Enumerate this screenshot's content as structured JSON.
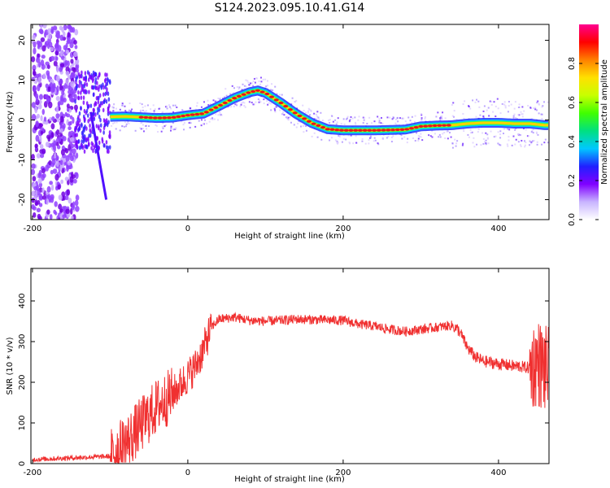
{
  "figure": {
    "title": "S124.2023.095.10.41.G14"
  },
  "colors": {
    "snr_line": "#f03030",
    "spectral_track": "#e8141e",
    "axis": "#000000",
    "colorbar_stops": [
      "#ffffff",
      "#c8b4ff",
      "#8000ff",
      "#2020ff",
      "#00c8ff",
      "#00e080",
      "#40ff00",
      "#c8ff00",
      "#ffe000",
      "#ff8000",
      "#ff0000",
      "#ff0090"
    ]
  },
  "chart_data": [
    {
      "type": "heatmap",
      "title": "S124.2023.095.10.41.G14",
      "xlabel": "Height of straight line (km)",
      "ylabel": "Frequency (Hz)",
      "xlim": [
        -202,
        465
      ],
      "ylim": [
        -25,
        24
      ],
      "x_ticks": [
        -200,
        0,
        200,
        400
      ],
      "y_ticks": [
        -20,
        -10,
        0,
        10,
        20
      ],
      "grid": false,
      "ridge": {
        "x": [
          -100,
          -80,
          -60,
          -40,
          -20,
          0,
          20,
          40,
          60,
          80,
          90,
          100,
          120,
          140,
          160,
          180,
          200,
          220,
          240,
          260,
          280,
          300,
          320,
          340,
          360,
          380,
          400,
          420,
          440,
          460
        ],
        "y": [
          0.8,
          0.9,
          0.7,
          0.5,
          0.6,
          1.2,
          1.6,
          3.5,
          5.5,
          7.0,
          7.4,
          6.8,
          4.3,
          1.5,
          -0.8,
          -2.3,
          -2.6,
          -2.6,
          -2.6,
          -2.5,
          -2.4,
          -1.6,
          -1.4,
          -1.3,
          -0.9,
          -0.7,
          -0.7,
          -0.9,
          -0.9,
          -1.3
        ]
      },
      "colorbar": {
        "label": "Normalized spectral amplitude",
        "range": [
          0,
          1
        ],
        "ticks": [
          "0.0",
          "0.2",
          "0.4",
          "0.6",
          "0.8"
        ],
        "tick_values": [
          0.0,
          0.2,
          0.4,
          0.6,
          0.8
        ]
      }
    },
    {
      "type": "line",
      "xlabel": "Height of straight line (km)",
      "ylabel": "SNR (10 * v/v)",
      "xlim": [
        -202,
        465
      ],
      "ylim": [
        0,
        480
      ],
      "x_ticks": [
        -200,
        0,
        200,
        400
      ],
      "y_ticks": [
        0,
        100,
        200,
        300,
        400
      ],
      "grid": false,
      "series": [
        {
          "x": [
            -200,
            -150,
            -100,
            -80,
            -60,
            -40,
            -20,
            0,
            10,
            20,
            30,
            40,
            60,
            80,
            100,
            120,
            140,
            160,
            180,
            200,
            220,
            240,
            260,
            280,
            300,
            320,
            340,
            350,
            360,
            370,
            380,
            400,
            420,
            430,
            440,
            450,
            460,
            465
          ],
          "y": [
            10,
            14,
            18,
            50,
            95,
            140,
            170,
            215,
            240,
            280,
            335,
            355,
            360,
            352,
            350,
            352,
            355,
            354,
            353,
            352,
            343,
            338,
            330,
            325,
            330,
            335,
            340,
            325,
            285,
            262,
            252,
            245,
            240,
            238,
            235,
            250,
            230,
            235
          ]
        }
      ]
    }
  ]
}
